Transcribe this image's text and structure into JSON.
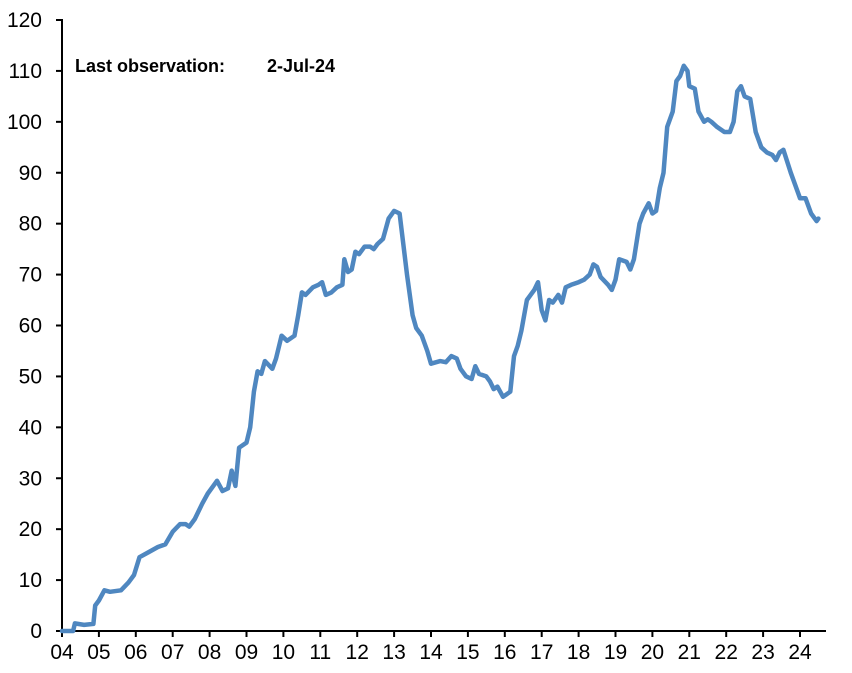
{
  "chart_data": {
    "type": "line",
    "title": "",
    "xlabel": "",
    "ylabel": "",
    "annotation_label": "Last observation:",
    "annotation_value": "2-Jul-24",
    "ylim": [
      0,
      120
    ],
    "xlim": [
      2004,
      2024.5
    ],
    "yticks": [
      "0",
      "10",
      "20",
      "30",
      "40",
      "50",
      "60",
      "70",
      "80",
      "90",
      "100",
      "110",
      "120"
    ],
    "xticks": [
      "04",
      "05",
      "06",
      "07",
      "08",
      "09",
      "10",
      "11",
      "12",
      "13",
      "14",
      "15",
      "16",
      "17",
      "18",
      "19",
      "20",
      "21",
      "22",
      "23",
      "24"
    ],
    "grid": false,
    "legend": "none",
    "line_color": "#4F87C0",
    "series": [
      {
        "points": [
          [
            2004.0,
            0
          ],
          [
            2004.3,
            0
          ],
          [
            2004.35,
            1.5
          ],
          [
            2004.6,
            1.2
          ],
          [
            2004.85,
            1.4
          ],
          [
            2004.9,
            5
          ],
          [
            2005.0,
            6
          ],
          [
            2005.15,
            8
          ],
          [
            2005.3,
            7.7
          ],
          [
            2005.6,
            8
          ],
          [
            2005.8,
            9.5
          ],
          [
            2005.95,
            11
          ],
          [
            2006.1,
            14.5
          ],
          [
            2006.35,
            15.5
          ],
          [
            2006.6,
            16.5
          ],
          [
            2006.8,
            17
          ],
          [
            2007.0,
            19.5
          ],
          [
            2007.2,
            21
          ],
          [
            2007.35,
            21
          ],
          [
            2007.45,
            20.5
          ],
          [
            2007.6,
            22
          ],
          [
            2007.8,
            25
          ],
          [
            2007.95,
            27
          ],
          [
            2008.1,
            28.5
          ],
          [
            2008.2,
            29.5
          ],
          [
            2008.35,
            27.5
          ],
          [
            2008.5,
            28
          ],
          [
            2008.6,
            31.5
          ],
          [
            2008.7,
            28.5
          ],
          [
            2008.8,
            36
          ],
          [
            2009.0,
            37
          ],
          [
            2009.1,
            40
          ],
          [
            2009.2,
            47
          ],
          [
            2009.3,
            51
          ],
          [
            2009.4,
            50.5
          ],
          [
            2009.5,
            53
          ],
          [
            2009.7,
            51.5
          ],
          [
            2009.8,
            53.5
          ],
          [
            2009.95,
            58
          ],
          [
            2010.1,
            57
          ],
          [
            2010.3,
            58
          ],
          [
            2010.4,
            62
          ],
          [
            2010.5,
            66.5
          ],
          [
            2010.6,
            66
          ],
          [
            2010.8,
            67.5
          ],
          [
            2010.95,
            68
          ],
          [
            2011.05,
            68.5
          ],
          [
            2011.15,
            66
          ],
          [
            2011.3,
            66.5
          ],
          [
            2011.45,
            67.5
          ],
          [
            2011.6,
            68
          ],
          [
            2011.65,
            73
          ],
          [
            2011.75,
            70.5
          ],
          [
            2011.85,
            71
          ],
          [
            2011.95,
            74.5
          ],
          [
            2012.05,
            74
          ],
          [
            2012.2,
            75.5
          ],
          [
            2012.35,
            75.5
          ],
          [
            2012.45,
            75
          ],
          [
            2012.55,
            76
          ],
          [
            2012.7,
            77
          ],
          [
            2012.85,
            81
          ],
          [
            2013.0,
            82.5
          ],
          [
            2013.15,
            82
          ],
          [
            2013.25,
            76
          ],
          [
            2013.35,
            70
          ],
          [
            2013.5,
            62
          ],
          [
            2013.6,
            59.5
          ],
          [
            2013.75,
            58
          ],
          [
            2013.9,
            55
          ],
          [
            2014.0,
            52.5
          ],
          [
            2014.25,
            53
          ],
          [
            2014.4,
            52.8
          ],
          [
            2014.55,
            54
          ],
          [
            2014.7,
            53.5
          ],
          [
            2014.8,
            51.5
          ],
          [
            2014.95,
            50
          ],
          [
            2015.1,
            49.5
          ],
          [
            2015.2,
            52
          ],
          [
            2015.3,
            50.5
          ],
          [
            2015.5,
            50
          ],
          [
            2015.6,
            49
          ],
          [
            2015.7,
            47.5
          ],
          [
            2015.8,
            48
          ],
          [
            2015.95,
            46
          ],
          [
            2016.15,
            47
          ],
          [
            2016.25,
            54
          ],
          [
            2016.35,
            56
          ],
          [
            2016.45,
            59
          ],
          [
            2016.6,
            65
          ],
          [
            2016.7,
            66
          ],
          [
            2016.8,
            67
          ],
          [
            2016.9,
            68.5
          ],
          [
            2017.0,
            63
          ],
          [
            2017.1,
            61
          ],
          [
            2017.2,
            65
          ],
          [
            2017.3,
            64.5
          ],
          [
            2017.45,
            66
          ],
          [
            2017.55,
            64.5
          ],
          [
            2017.65,
            67.5
          ],
          [
            2017.8,
            68
          ],
          [
            2018.0,
            68.5
          ],
          [
            2018.15,
            69
          ],
          [
            2018.3,
            70
          ],
          [
            2018.4,
            72
          ],
          [
            2018.5,
            71.5
          ],
          [
            2018.6,
            69.5
          ],
          [
            2018.8,
            68
          ],
          [
            2018.9,
            67
          ],
          [
            2019.0,
            69
          ],
          [
            2019.1,
            73
          ],
          [
            2019.3,
            72.5
          ],
          [
            2019.4,
            71
          ],
          [
            2019.5,
            73
          ],
          [
            2019.65,
            80
          ],
          [
            2019.75,
            82
          ],
          [
            2019.9,
            84
          ],
          [
            2020.0,
            82
          ],
          [
            2020.1,
            82.5
          ],
          [
            2020.2,
            87
          ],
          [
            2020.3,
            90
          ],
          [
            2020.4,
            99
          ],
          [
            2020.55,
            102
          ],
          [
            2020.65,
            108
          ],
          [
            2020.75,
            109
          ],
          [
            2020.85,
            111
          ],
          [
            2020.95,
            110
          ],
          [
            2021.0,
            107
          ],
          [
            2021.15,
            106.5
          ],
          [
            2021.25,
            102
          ],
          [
            2021.4,
            100
          ],
          [
            2021.5,
            100.5
          ],
          [
            2021.6,
            100
          ],
          [
            2021.75,
            99
          ],
          [
            2021.95,
            98
          ],
          [
            2022.1,
            98
          ],
          [
            2022.2,
            100
          ],
          [
            2022.3,
            106
          ],
          [
            2022.4,
            107
          ],
          [
            2022.5,
            105
          ],
          [
            2022.65,
            104.5
          ],
          [
            2022.8,
            98
          ],
          [
            2022.95,
            95
          ],
          [
            2023.1,
            94
          ],
          [
            2023.25,
            93.5
          ],
          [
            2023.35,
            92.5
          ],
          [
            2023.45,
            94
          ],
          [
            2023.55,
            94.5
          ],
          [
            2023.75,
            90
          ],
          [
            2023.9,
            87
          ],
          [
            2024.0,
            85
          ],
          [
            2024.15,
            85
          ],
          [
            2024.3,
            82
          ],
          [
            2024.45,
            80.5
          ],
          [
            2024.5,
            81
          ]
        ]
      }
    ]
  }
}
